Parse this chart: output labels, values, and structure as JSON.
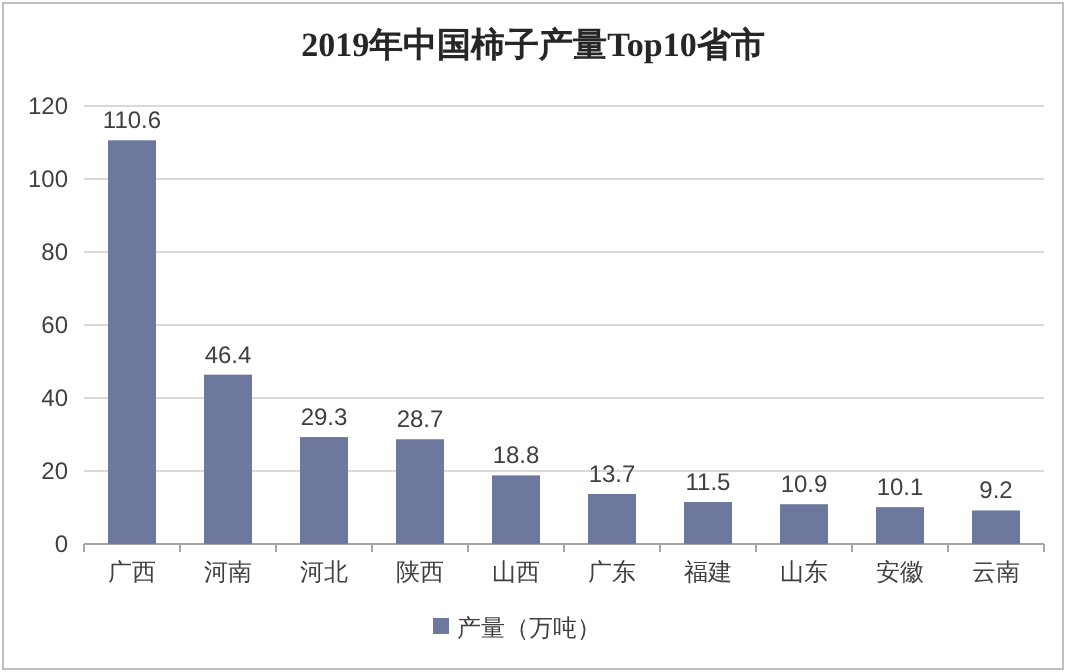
{
  "chart_data": {
    "type": "bar",
    "title": "2019年中国柿子产量Top10省市",
    "categories": [
      "广西",
      "河南",
      "河北",
      "陕西",
      "山西",
      "广东",
      "福建",
      "山东",
      "安徽",
      "云南"
    ],
    "series": [
      {
        "name": "产量（万吨）",
        "color": "#6e789f",
        "values": [
          110.6,
          46.4,
          29.3,
          28.7,
          18.8,
          13.7,
          11.5,
          10.9,
          10.1,
          9.2
        ]
      }
    ],
    "ylim": [
      0,
      120
    ],
    "yticks": [
      0,
      20,
      40,
      60,
      80,
      100,
      120
    ],
    "grid": "y",
    "data_labels": true,
    "legend": "bottom"
  }
}
